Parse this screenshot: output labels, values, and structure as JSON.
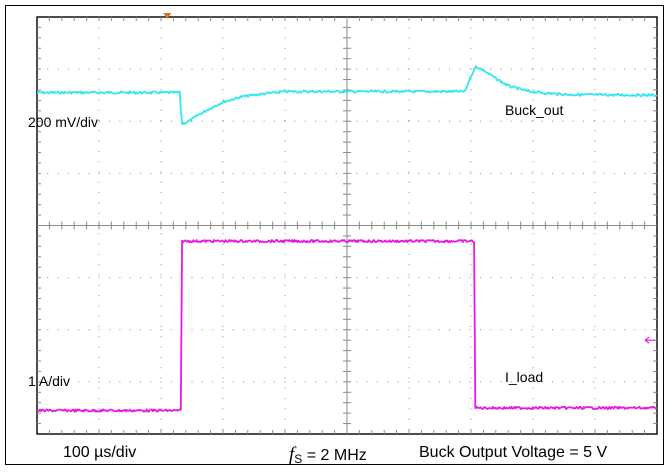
{
  "chart_data": {
    "type": "line",
    "x_unit": "div",
    "xlim": [
      0,
      10
    ],
    "ylim": [
      0,
      8
    ],
    "grid": true,
    "series": [
      {
        "name": "Buck_out",
        "color": "#33e6f0",
        "scale_label": "200 mV/div",
        "x": [
          0,
          2.3,
          2.34,
          2.45,
          2.6,
          2.8,
          3.0,
          3.3,
          3.6,
          4.0,
          6.9,
          7.0,
          7.08,
          7.2,
          7.4,
          7.6,
          7.9,
          8.2,
          8.6,
          10
        ],
        "y": [
          6.55,
          6.55,
          5.95,
          6.0,
          6.12,
          6.25,
          6.37,
          6.47,
          6.52,
          6.57,
          6.57,
          6.87,
          7.05,
          6.98,
          6.82,
          6.68,
          6.58,
          6.54,
          6.51,
          6.5
        ]
      },
      {
        "name": "I_load",
        "color": "#e619e6",
        "scale_label": "1 A/div",
        "x": [
          0,
          2.32,
          2.34,
          7.05,
          7.07,
          10
        ],
        "y": [
          0.45,
          0.45,
          3.7,
          3.7,
          0.5,
          0.5
        ]
      }
    ]
  },
  "footer": {
    "time_div": "100 µs/div",
    "fs_symbol": "f",
    "fs_subscript": "S",
    "fs_value": " = 2 MHz",
    "title": "Buck Output Voltage = 5 V"
  }
}
